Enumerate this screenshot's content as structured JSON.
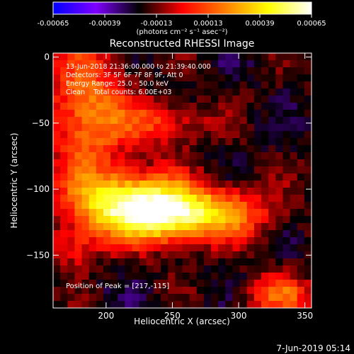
{
  "chart_data": {
    "type": "heatmap",
    "title": "Reconstructed RHESSI Image",
    "xlabel": "Heliocentric X (arcsec)",
    "ylabel": "Heliocentric Y (arcsec)",
    "xlim": [
      160,
      355
    ],
    "ylim": [
      -190,
      3
    ],
    "x_ticks": [
      200,
      250,
      300,
      350
    ],
    "y_ticks": [
      0,
      -50,
      -100,
      -150
    ],
    "colorbar": {
      "range": [
        -0.00065,
        0.00065
      ],
      "tick_values": [
        -0.00065,
        -0.00039,
        -0.00013,
        0.00013,
        0.00039,
        0.00065
      ],
      "tick_labels": [
        "-0.00065",
        "-0.00039",
        "-0.00013",
        "0.00013",
        "0.00039",
        "0.00065"
      ],
      "unit_label": "(photons cm⁻² s⁻¹ asec⁻²)",
      "colors": [
        "#0000ff",
        "#7f00ff",
        "#000000",
        "#ff0000",
        "#ff8000",
        "#ffff00",
        "#ffffff"
      ]
    },
    "annotations": [
      "13-Jun-2018 21:36:00.000 to 21:39:40.000",
      "Detectors: 3F 5F 6F 7F 8F 9F, Att 0",
      "Energy Range: 25.0 - 50.0 keV",
      "Clean    Total counts: 6.00E+03"
    ],
    "peak_label": "Position of Peak = [217,-115]",
    "peak_position": [
      217,
      -115
    ],
    "image_sources": [
      {
        "x": 210,
        "y": -112,
        "peak": 0.00065,
        "sx": 28,
        "sy": 18
      },
      {
        "x": 245,
        "y": -118,
        "peak": 0.00052,
        "sx": 22,
        "sy": 15
      },
      {
        "x": 285,
        "y": -118,
        "peak": 0.00045,
        "sx": 28,
        "sy": 14
      },
      {
        "x": 185,
        "y": -40,
        "peak": 0.00042,
        "sx": 20,
        "sy": 35
      },
      {
        "x": 240,
        "y": -50,
        "peak": 0.00028,
        "sx": 25,
        "sy": 12
      },
      {
        "x": 330,
        "y": -180,
        "peak": 0.00035,
        "sx": 18,
        "sy": 10
      },
      {
        "x": 175,
        "y": -145,
        "peak": 0.00022,
        "sx": 12,
        "sy": 10
      }
    ]
  },
  "footer": {
    "timestamp": "7-Jun-2019 05:14"
  }
}
